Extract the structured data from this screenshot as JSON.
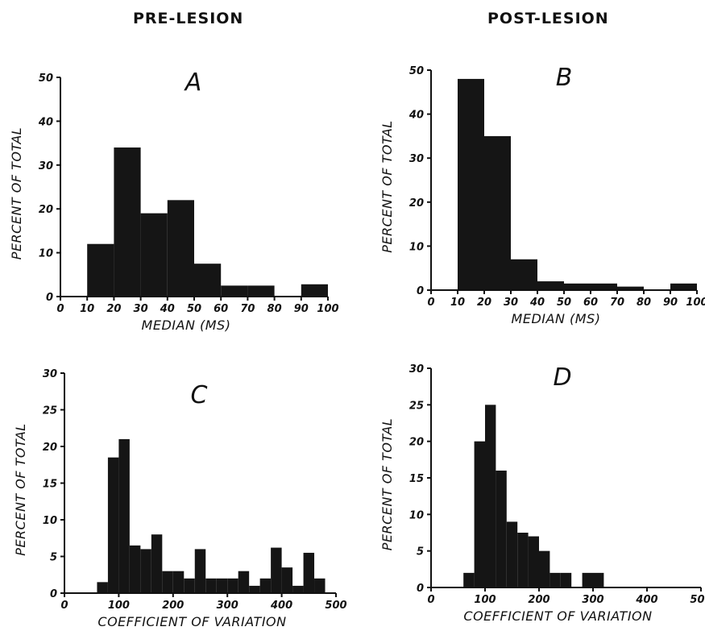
{
  "headers": {
    "pre": "PRE-LESION",
    "post": "POST-LESION"
  },
  "chart_data": [
    {
      "type": "bar",
      "panel": "A",
      "xlabel": "MEDIAN (MS)",
      "ylabel": "PERCENT OF TOTAL",
      "xlim": [
        0,
        100
      ],
      "ylim": [
        0,
        50
      ],
      "xticks": [
        0,
        10,
        20,
        30,
        40,
        50,
        60,
        70,
        80,
        90,
        100
      ],
      "yticks": [
        0,
        10,
        20,
        30,
        40,
        50
      ],
      "bins": [
        {
          "start": 10,
          "end": 20,
          "value": 12
        },
        {
          "start": 20,
          "end": 30,
          "value": 34
        },
        {
          "start": 30,
          "end": 40,
          "value": 19
        },
        {
          "start": 40,
          "end": 50,
          "value": 22
        },
        {
          "start": 50,
          "end": 60,
          "value": 7.5
        },
        {
          "start": 60,
          "end": 70,
          "value": 2.5
        },
        {
          "start": 70,
          "end": 80,
          "value": 2.5
        },
        {
          "start": 80,
          "end": 90,
          "value": 0
        },
        {
          "start": 90,
          "end": 100,
          "value": 2.8
        }
      ]
    },
    {
      "type": "bar",
      "panel": "B",
      "xlabel": "MEDIAN (MS)",
      "ylabel": "PERCENT OF TOTAL",
      "xlim": [
        0,
        100
      ],
      "ylim": [
        0,
        50
      ],
      "xticks": [
        0,
        10,
        20,
        30,
        40,
        50,
        60,
        70,
        80,
        90,
        100
      ],
      "yticks": [
        0,
        10,
        20,
        30,
        40,
        50
      ],
      "bins": [
        {
          "start": 10,
          "end": 20,
          "value": 48
        },
        {
          "start": 20,
          "end": 30,
          "value": 35
        },
        {
          "start": 30,
          "end": 40,
          "value": 7
        },
        {
          "start": 40,
          "end": 50,
          "value": 2
        },
        {
          "start": 50,
          "end": 60,
          "value": 1.5
        },
        {
          "start": 60,
          "end": 70,
          "value": 1.5
        },
        {
          "start": 70,
          "end": 80,
          "value": 0.8
        },
        {
          "start": 80,
          "end": 90,
          "value": 0
        },
        {
          "start": 90,
          "end": 100,
          "value": 1.5
        }
      ]
    },
    {
      "type": "bar",
      "panel": "C",
      "xlabel": "COEFFICIENT OF VARIATION",
      "ylabel": "PERCENT OF TOTAL",
      "xlim": [
        0,
        500
      ],
      "ylim": [
        0,
        30
      ],
      "xticks": [
        0,
        100,
        200,
        300,
        400,
        500
      ],
      "yticks": [
        0,
        5,
        10,
        15,
        20,
        25,
        30
      ],
      "bins": [
        {
          "start": 60,
          "end": 80,
          "value": 1.5
        },
        {
          "start": 80,
          "end": 100,
          "value": 18.5
        },
        {
          "start": 100,
          "end": 120,
          "value": 21
        },
        {
          "start": 120,
          "end": 140,
          "value": 6.5
        },
        {
          "start": 140,
          "end": 160,
          "value": 6
        },
        {
          "start": 160,
          "end": 180,
          "value": 8
        },
        {
          "start": 180,
          "end": 200,
          "value": 3
        },
        {
          "start": 200,
          "end": 220,
          "value": 3
        },
        {
          "start": 220,
          "end": 240,
          "value": 2
        },
        {
          "start": 240,
          "end": 260,
          "value": 6
        },
        {
          "start": 260,
          "end": 280,
          "value": 2
        },
        {
          "start": 280,
          "end": 300,
          "value": 2
        },
        {
          "start": 300,
          "end": 320,
          "value": 2
        },
        {
          "start": 320,
          "end": 340,
          "value": 3
        },
        {
          "start": 340,
          "end": 360,
          "value": 1
        },
        {
          "start": 360,
          "end": 380,
          "value": 2
        },
        {
          "start": 380,
          "end": 400,
          "value": 6.2
        },
        {
          "start": 400,
          "end": 420,
          "value": 3.5
        },
        {
          "start": 420,
          "end": 440,
          "value": 1
        },
        {
          "start": 440,
          "end": 460,
          "value": 5.5
        },
        {
          "start": 460,
          "end": 480,
          "value": 2
        }
      ]
    },
    {
      "type": "bar",
      "panel": "D",
      "xlabel": "COEFFICIENT OF VARIATION",
      "ylabel": "PERCENT OF TOTAL",
      "xlim": [
        0,
        500
      ],
      "ylim": [
        0,
        30
      ],
      "xticks": [
        0,
        100,
        200,
        300,
        400,
        500
      ],
      "yticks": [
        0,
        5,
        10,
        15,
        20,
        25,
        30
      ],
      "bins": [
        {
          "start": 60,
          "end": 80,
          "value": 2
        },
        {
          "start": 80,
          "end": 100,
          "value": 20
        },
        {
          "start": 100,
          "end": 120,
          "value": 25
        },
        {
          "start": 120,
          "end": 140,
          "value": 16
        },
        {
          "start": 140,
          "end": 160,
          "value": 9
        },
        {
          "start": 160,
          "end": 180,
          "value": 7.5
        },
        {
          "start": 180,
          "end": 200,
          "value": 7
        },
        {
          "start": 200,
          "end": 220,
          "value": 5
        },
        {
          "start": 220,
          "end": 240,
          "value": 2
        },
        {
          "start": 240,
          "end": 260,
          "value": 2
        },
        {
          "start": 260,
          "end": 280,
          "value": 0
        },
        {
          "start": 280,
          "end": 300,
          "value": 2
        },
        {
          "start": 300,
          "end": 320,
          "value": 2
        }
      ]
    }
  ]
}
